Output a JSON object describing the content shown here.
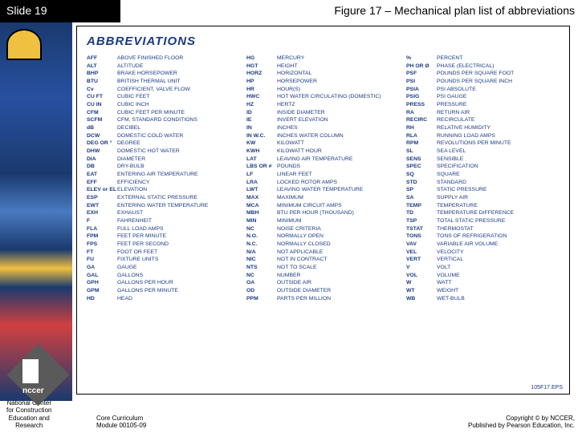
{
  "slide_label": "Slide 19",
  "figure_title": "Figure 17 – Mechanical plan list of abbreviations",
  "heading": "ABBREVIATIONS",
  "eps_label": "105F17.EPS",
  "logo_text": "nccer",
  "footer": {
    "org_line1": "National Center",
    "org_line2": "for Construction",
    "org_line3": "Education and",
    "org_line4": "Research",
    "mid_line1": "Core Curriculum",
    "mid_line2": "Module 00105-09",
    "right_line1": "Copyright © by NCCER,",
    "right_line2": "Published by Pearson Education, Inc."
  },
  "columns": [
    [
      [
        "AFF",
        "ABOVE FINISHED FLOOR"
      ],
      [
        "ALT",
        "ALTITUDE"
      ],
      [
        "BHP",
        "BRAKE HORSEPOWER"
      ],
      [
        "BTU",
        "BRITISH THERMAL UNIT"
      ],
      [
        "Cv",
        "COEFFICIENT, VALVE FLOW"
      ],
      [
        "CU FT",
        "CUBIC FEET"
      ],
      [
        "CU IN",
        "CUBIC INCH"
      ],
      [
        "CFM",
        "CUBIC FEET PER MINUTE"
      ],
      [
        "SCFM",
        "CFM, STANDARD CONDITIONS"
      ],
      [
        "dB",
        "DECIBEL"
      ],
      [
        "DCW",
        "DOMESTIC COLD WATER"
      ],
      [
        "DEG OR °",
        "DEGREE"
      ],
      [
        "DHW",
        "DOMESTIC HOT WATER"
      ],
      [
        "DIA",
        "DIAMETER"
      ],
      [
        "DB",
        "DRY-BULB"
      ],
      [
        "EAT",
        "ENTERING AIR TEMPERATURE"
      ],
      [
        "EFF",
        "EFFICIENCY"
      ],
      [
        "ELEV or EL",
        "ELEVATION"
      ],
      [
        "ESP",
        "EXTERNAL STATIC PRESSURE"
      ],
      [
        "EWT",
        "ENTERING WATER TEMPERATURE"
      ],
      [
        "EXH",
        "EXHAUST"
      ],
      [
        "F",
        "FAHRENHEIT"
      ],
      [
        "FLA",
        "FULL LOAD AMPS"
      ],
      [
        "FPM",
        "FEET PER MINUTE"
      ],
      [
        "FPS",
        "FEET PER SECOND"
      ],
      [
        "FT",
        "FOOT OR FEET"
      ],
      [
        "FU",
        "FIXTURE UNITS"
      ],
      [
        "GA",
        "GAUGE"
      ],
      [
        "GAL",
        "GALLONS"
      ],
      [
        "GPH",
        "GALLONS PER HOUR"
      ],
      [
        "GPM",
        "GALLONS PER MINUTE"
      ],
      [
        "HD",
        "HEAD"
      ]
    ],
    [
      [
        "HG",
        "MERCURY"
      ],
      [
        "HGT",
        "HEIGHT"
      ],
      [
        "HORZ",
        "HORIZONTAL"
      ],
      [
        "HP",
        "HORSEPOWER"
      ],
      [
        "HR",
        "HOUR(S)"
      ],
      [
        "HWC",
        "HOT WATER CIRCULATING (DOMESTIC)"
      ],
      [
        "HZ",
        "HERTZ"
      ],
      [
        "ID",
        "INSIDE DIAMETER"
      ],
      [
        "IE",
        "INVERT ELEVATION"
      ],
      [
        "IN",
        "INCHES"
      ],
      [
        "IN W.C.",
        "INCHES WATER COLUMN"
      ],
      [
        "KW",
        "KILOWATT"
      ],
      [
        "KWH",
        "KILOWATT HOUR"
      ],
      [
        "LAT",
        "LEAVING AIR TEMPERATURE"
      ],
      [
        "LBS OR #",
        "POUNDS"
      ],
      [
        "LF",
        "LINEAR FEET"
      ],
      [
        "LRA",
        "LOCKED ROTOR AMPS"
      ],
      [
        "LWT",
        "LEAVING WATER TEMPERATURE"
      ],
      [
        "MAX",
        "MAXIMUM"
      ],
      [
        "MCA",
        "MINIMUM CIRCUIT AMPS"
      ],
      [
        "MBH",
        "BTU PER HOUR (THOUSAND)"
      ],
      [
        "MIN",
        "MINIMUM"
      ],
      [
        "NC",
        "NOISE CRITERIA"
      ],
      [
        "N.O.",
        "NORMALLY OPEN"
      ],
      [
        "N.C.",
        "NORMALLY CLOSED"
      ],
      [
        "N/A",
        "NOT APPLICABLE"
      ],
      [
        "NIC",
        "NOT IN CONTRACT"
      ],
      [
        "NTS",
        "NOT TO SCALE"
      ],
      [
        "NC",
        "NUMBER"
      ],
      [
        "OA",
        "OUTSIDE AIR"
      ],
      [
        "OD",
        "OUTSIDE DIAMETER"
      ],
      [
        "PPM",
        "PARTS PER MILLION"
      ]
    ],
    [
      [
        "%",
        "PERCENT"
      ],
      [
        "PH OR Ø",
        "PHASE (ELECTRICAL)"
      ],
      [
        "PSF",
        "POUNDS PER SQUARE FOOT"
      ],
      [
        "PSI",
        "POUNDS PER SQUARE INCH"
      ],
      [
        "PSIA",
        "PSI ABSOLUTE"
      ],
      [
        "PSIG",
        "PSI GAUGE"
      ],
      [
        "PRESS",
        "PRESSURE"
      ],
      [
        "RA",
        "RETURN AIR"
      ],
      [
        "RECIRC",
        "RECIRCULATE"
      ],
      [
        "RH",
        "RELATIVE HUMIDITY"
      ],
      [
        "RLA",
        "RUNNING LOAD AMPS"
      ],
      [
        "RPM",
        "REVOLUTIONS PER MINUTE"
      ],
      [
        "SL",
        "SEA LEVEL"
      ],
      [
        "SENS",
        "SENSIBLE"
      ],
      [
        "SPEC",
        "SPECIFICATION"
      ],
      [
        "SQ",
        "SQUARE"
      ],
      [
        "STD",
        "STANDARD"
      ],
      [
        "SP",
        "STATIC PRESSURE"
      ],
      [
        "SA",
        "SUPPLY AIR"
      ],
      [
        "TEMP",
        "TEMPERATURE"
      ],
      [
        "TD",
        "TEMPERATURE DIFFERENCE"
      ],
      [
        "TSP",
        "TOTAL STATIC PRESSURE"
      ],
      [
        "TSTAT",
        "THERMOSTAT"
      ],
      [
        "TONS",
        "TONS OF REFRIGERATION"
      ],
      [
        "VAV",
        "VARIABLE AIR VOLUME"
      ],
      [
        "VEL",
        "VELOCITY"
      ],
      [
        "VERT",
        "VERTICAL"
      ],
      [
        "V",
        "VOLT"
      ],
      [
        "VOL",
        "VOLUME"
      ],
      [
        "W",
        "WATT"
      ],
      [
        "WT",
        "WEIGHT"
      ],
      [
        "WB",
        "WET-BULB"
      ]
    ]
  ]
}
